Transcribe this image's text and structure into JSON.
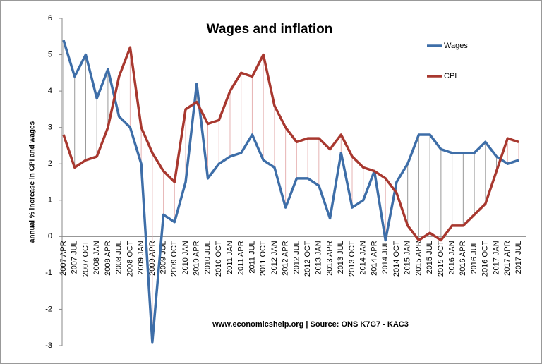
{
  "chart_data": {
    "type": "line",
    "title": "Wages and inflation",
    "y_label": "annual % increase in CPI and wages",
    "annotation": "www.economicshelp.org | Source: ONS K7G7 - KAC3",
    "categories": [
      "2007 APR",
      "2007 JUL",
      "2007 OCT",
      "2008 JAN",
      "2008 APR",
      "2008 JUL",
      "2008 OCT",
      "2009 JAN",
      "2009 APR",
      "2009 JUL",
      "2009 OCT",
      "2010 JAN",
      "2010 APR",
      "2010 JUL",
      "2010 OCT",
      "2011 JAN",
      "2011 APR",
      "2011 JUL",
      "2011 OCT",
      "2012 JAN",
      "2012 APR",
      "2012 JUL",
      "2012 OCT",
      "2013 JAN",
      "2013 APR",
      "2013 JUL",
      "2013 OCT",
      "2014 JAN",
      "2014 APR",
      "2014 JUL",
      "2014 OCT",
      "2015 JAN",
      "2015 APR",
      "2015 JUL",
      "2015 OCT",
      "2016 JAN",
      "2016 APR",
      "2016 JUL",
      "2016 OCT",
      "2017 JAN",
      "2017 APR",
      "2017 JUL"
    ],
    "series": [
      {
        "name": "Wages",
        "color": "#3e6ea8",
        "values": [
          5.4,
          4.4,
          5.0,
          3.8,
          4.6,
          3.3,
          3.0,
          2.0,
          -2.9,
          0.6,
          0.4,
          1.5,
          4.2,
          1.6,
          2.0,
          2.2,
          2.3,
          2.8,
          2.1,
          1.9,
          0.8,
          1.6,
          1.6,
          1.4,
          0.5,
          2.3,
          0.8,
          1.0,
          1.8,
          -0.1,
          1.5,
          2.0,
          2.8,
          2.8,
          2.4,
          2.3,
          2.3,
          2.3,
          2.6,
          2.2,
          2.0,
          2.1
        ]
      },
      {
        "name": "CPI",
        "color": "#a8382f",
        "values": [
          2.8,
          1.9,
          2.1,
          2.2,
          3.0,
          4.4,
          5.2,
          3.0,
          2.3,
          1.8,
          1.5,
          3.5,
          3.7,
          3.1,
          3.2,
          4.0,
          4.5,
          4.4,
          5.0,
          3.6,
          3.0,
          2.6,
          2.7,
          2.7,
          2.4,
          2.8,
          2.2,
          1.9,
          1.8,
          1.6,
          1.2,
          0.3,
          -0.1,
          0.1,
          -0.1,
          0.3,
          0.3,
          0.6,
          0.9,
          1.8,
          2.7,
          2.6
        ]
      }
    ],
    "ylim": [
      -3,
      6
    ],
    "yticks": [
      -3,
      -2,
      -1,
      0,
      1,
      2,
      3,
      4,
      5,
      6
    ],
    "grid": false,
    "legend": "top-right"
  }
}
